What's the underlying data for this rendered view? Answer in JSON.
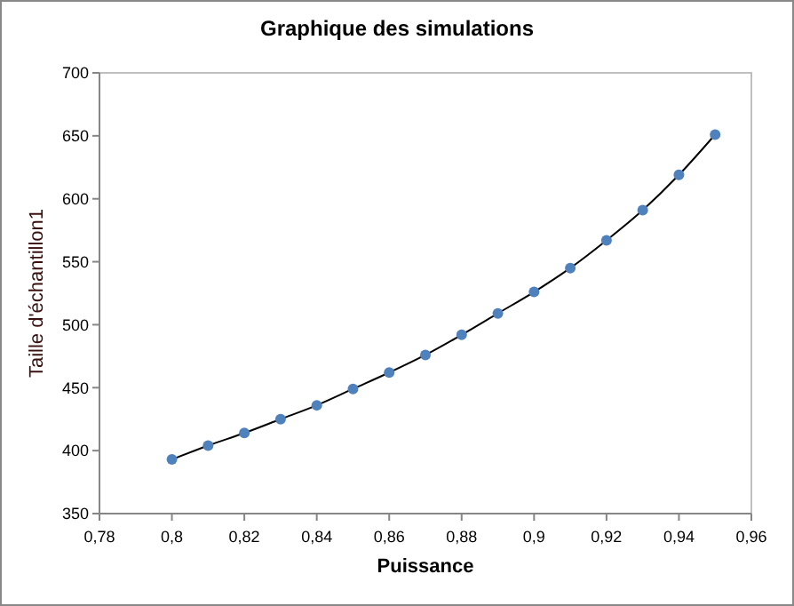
{
  "chart_data": {
    "type": "line",
    "title": "Graphique des simulations",
    "xlabel": "Puissance",
    "ylabel": "Taille d'échantillon1",
    "x": [
      0.8,
      0.81,
      0.82,
      0.83,
      0.84,
      0.85,
      0.86,
      0.87,
      0.88,
      0.89,
      0.9,
      0.91,
      0.92,
      0.93,
      0.94,
      0.95
    ],
    "series": [
      {
        "color": "#4f81bd",
        "values": [
          393,
          404,
          414,
          425,
          436,
          449,
          462,
          476,
          492,
          509,
          526,
          545,
          567,
          591,
          619,
          651
        ]
      }
    ],
    "xlim": [
      0.78,
      0.96
    ],
    "xticks": [
      {
        "value": 0.78,
        "label": "0,78"
      },
      {
        "value": 0.8,
        "label": "0,8"
      },
      {
        "value": 0.82,
        "label": "0,82"
      },
      {
        "value": 0.84,
        "label": "0,84"
      },
      {
        "value": 0.86,
        "label": "0,86"
      },
      {
        "value": 0.88,
        "label": "0,88"
      },
      {
        "value": 0.9,
        "label": "0,9"
      },
      {
        "value": 0.92,
        "label": "0,92"
      },
      {
        "value": 0.94,
        "label": "0,94"
      },
      {
        "value": 0.96,
        "label": "0,96"
      }
    ],
    "ylim": [
      350,
      700
    ],
    "yticks": [
      350,
      400,
      450,
      500,
      550,
      600,
      650,
      700
    ],
    "marker": "circle",
    "line_style": "solid",
    "grid": false
  }
}
